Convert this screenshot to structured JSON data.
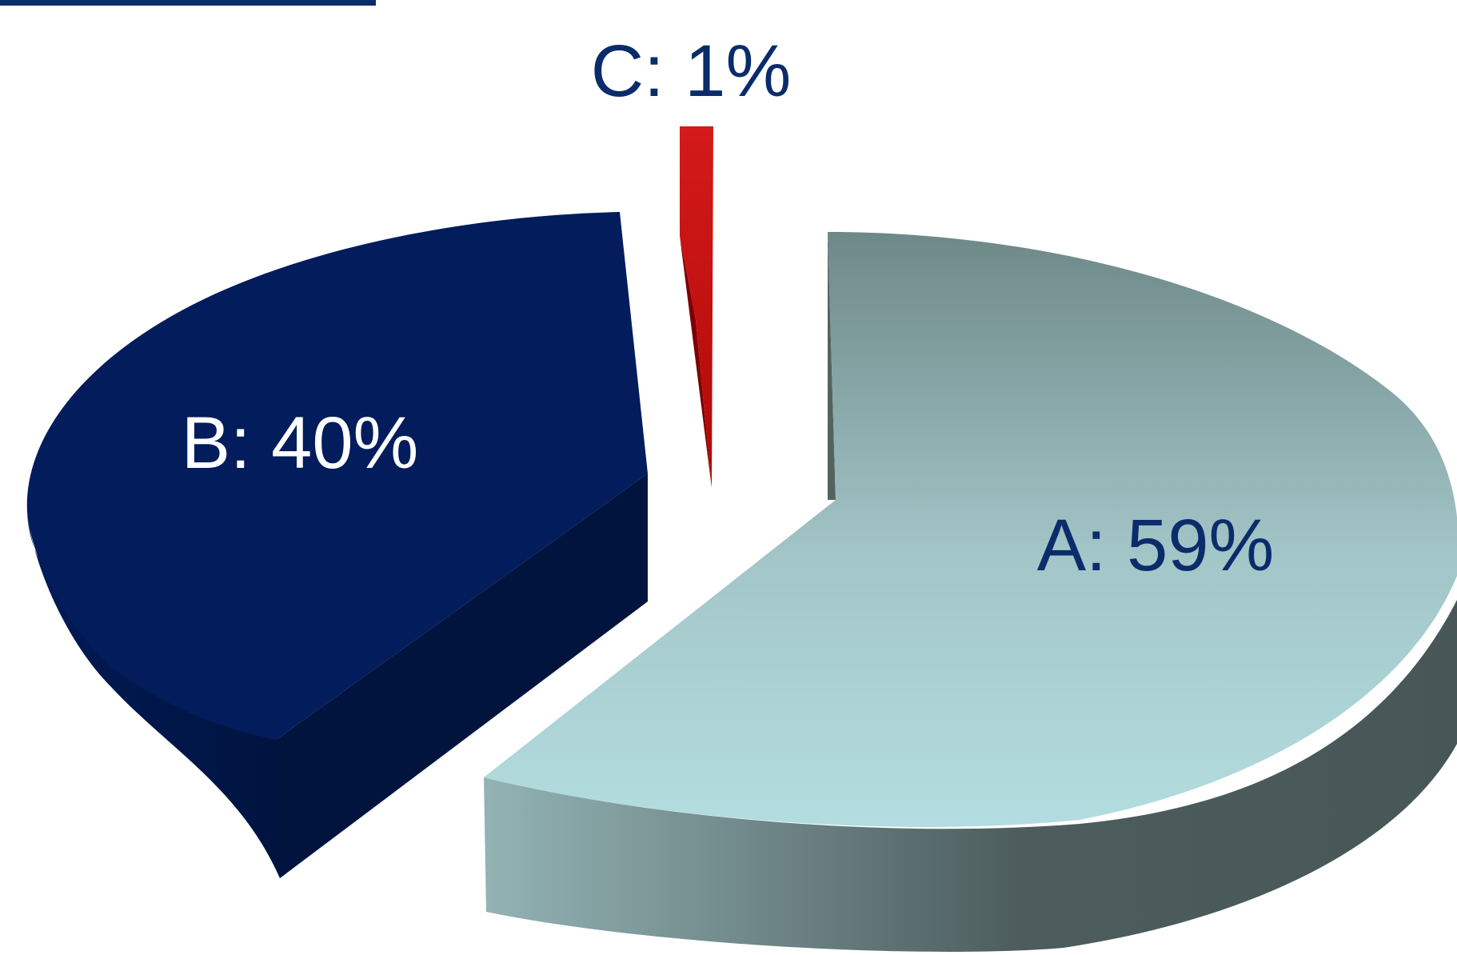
{
  "chart_data": {
    "type": "pie",
    "style": "3d-exploded",
    "legend": "none",
    "slices": [
      {
        "label": "A",
        "value": 59,
        "data_label": "A: 59%",
        "color": "#a3cdd0",
        "side_color": "#5e7373",
        "label_color": "#0b2c6b"
      },
      {
        "label": "B",
        "value": 40,
        "data_label": "B: 40%",
        "color": "#021c5c",
        "side_color": "#00143e",
        "label_color": "#ffffff"
      },
      {
        "label": "C",
        "value": 1,
        "data_label": "C: 1%",
        "color": "#cc1010",
        "side_color": "#7d0000",
        "label_color": "#0b2c6b"
      }
    ]
  },
  "clipped_title_color": "#0b2c6b"
}
